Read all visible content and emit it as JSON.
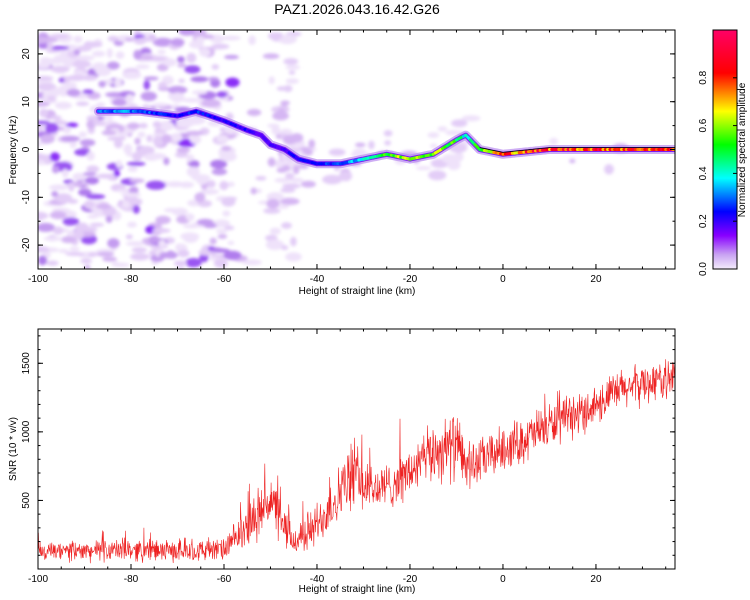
{
  "title": "PAZ1.2026.043.16.42.G26",
  "chart_data": [
    {
      "type": "heatmap",
      "title": "PAZ1.2026.043.16.42.G26",
      "xlabel": "Height of straight line (km)",
      "ylabel": "Frequency (Hz)",
      "xlim": [
        -100,
        37
      ],
      "ylim": [
        -25,
        25
      ],
      "xticks": [
        -100,
        -80,
        -60,
        -40,
        -20,
        0,
        20
      ],
      "yticks": [
        -20,
        -10,
        0,
        10,
        20
      ],
      "colorbar": {
        "label": "Normalized spectral amplitude",
        "range": [
          0,
          1
        ],
        "ticks": [
          "0.0",
          "0.2",
          "0.4",
          "0.6",
          "0.8"
        ],
        "tick_values": [
          0.0,
          0.2,
          0.4,
          0.6,
          0.8
        ],
        "colormap": [
          "#e9d8f7",
          "#8800ff",
          "#0000ff",
          "#00ffff",
          "#00ff00",
          "#ffff00",
          "#ff0000",
          "#ff0066"
        ]
      },
      "ridge": {
        "height": [
          -87,
          -78,
          -70,
          -66,
          -60,
          -55,
          -52,
          -50,
          -47,
          -44,
          -40,
          -35,
          -30,
          -25,
          -20,
          -15,
          -10,
          -8,
          -5,
          0,
          10,
          20,
          37
        ],
        "frequency": [
          8,
          8,
          7,
          8,
          6,
          4,
          3,
          1,
          0,
          -2,
          -3,
          -3,
          -2,
          -1,
          -2,
          -1,
          2,
          3,
          0,
          -1,
          0,
          0,
          0
        ],
        "amplitude": [
          0.35,
          0.35,
          0.25,
          0.3,
          0.25,
          0.25,
          0.2,
          0.2,
          0.22,
          0.25,
          0.3,
          0.3,
          0.45,
          0.55,
          0.7,
          0.65,
          0.6,
          0.45,
          0.55,
          0.8,
          0.85,
          0.85,
          0.85
        ]
      }
    },
    {
      "type": "line",
      "xlabel": "Height of straight line (km)",
      "ylabel": "SNR (10 * v/v)",
      "xlim": [
        -100,
        37
      ],
      "ylim": [
        0,
        1750
      ],
      "xticks": [
        -100,
        -80,
        -60,
        -40,
        -20,
        0,
        20
      ],
      "yticks": [
        500,
        1000,
        1500
      ],
      "color": "#ee2222",
      "envelope": {
        "height": [
          -100,
          -90,
          -80,
          -70,
          -60,
          -55,
          -50,
          -48,
          -45,
          -40,
          -35,
          -32,
          -30,
          -28,
          -25,
          -20,
          -15,
          -10,
          -8,
          -5,
          0,
          5,
          10,
          15,
          20,
          25,
          30,
          37
        ],
        "mean": [
          120,
          130,
          140,
          130,
          140,
          300,
          520,
          350,
          200,
          320,
          560,
          700,
          620,
          580,
          600,
          700,
          850,
          900,
          750,
          780,
          880,
          950,
          1050,
          1100,
          1200,
          1300,
          1350,
          1400
        ],
        "spread": [
          90,
          90,
          100,
          90,
          100,
          180,
          260,
          200,
          140,
          200,
          250,
          300,
          260,
          220,
          200,
          220,
          260,
          300,
          220,
          200,
          200,
          200,
          200,
          180,
          180,
          180,
          180,
          160
        ]
      }
    }
  ]
}
